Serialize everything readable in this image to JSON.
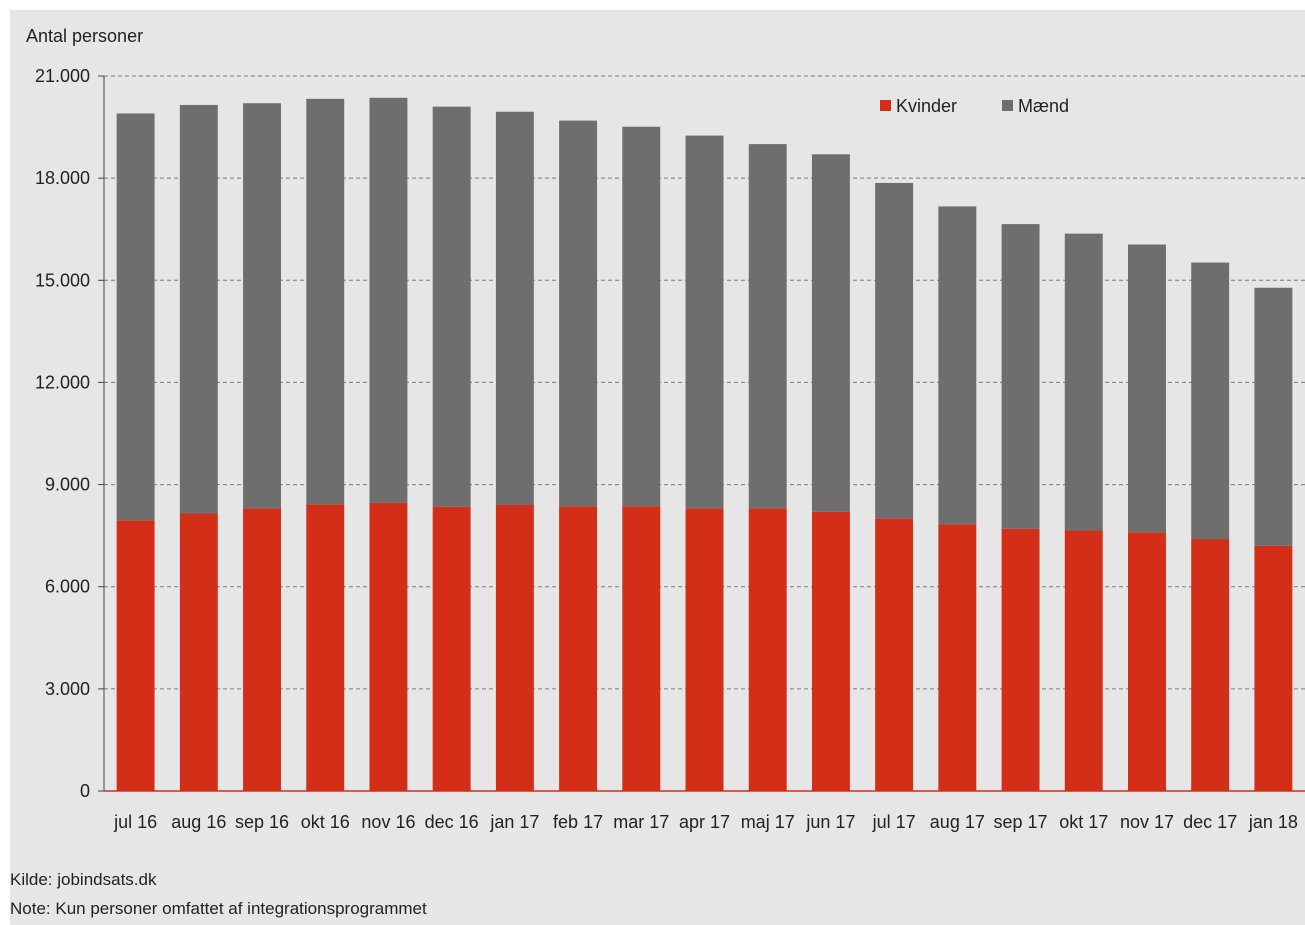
{
  "chart_data": {
    "type": "bar",
    "stacked": true,
    "ylabel": "Antal personer",
    "xlabel": "",
    "ylim": [
      0,
      21000
    ],
    "yticks": [
      0,
      3000,
      6000,
      9000,
      12000,
      15000,
      18000,
      21000
    ],
    "ytick_labels": [
      "0",
      "3.000",
      "6.000",
      "9.000",
      "12.000",
      "15.000",
      "18.000",
      "21.000"
    ],
    "grid": true,
    "legend_position": "top-right",
    "categories": [
      "jul 16",
      "aug 16",
      "sep 16",
      "okt 16",
      "nov 16",
      "dec 16",
      "jan 17",
      "feb 17",
      "mar 17",
      "apr 17",
      "maj 17",
      "jun 17",
      "jul 17",
      "aug 17",
      "sep 17",
      "okt 17",
      "nov 17",
      "dec 17",
      "jan 18"
    ],
    "series": [
      {
        "name": "Kvinder",
        "color": "#d22e18",
        "values": [
          7950,
          8150,
          8300,
          8420,
          8460,
          8350,
          8400,
          8360,
          8360,
          8300,
          8300,
          8200,
          8000,
          7830,
          7700,
          7650,
          7600,
          7400,
          7200
        ]
      },
      {
        "name": "Mænd",
        "color": "#6e6e6e",
        "values": [
          11950,
          12000,
          11900,
          11910,
          11900,
          11750,
          11550,
          11330,
          11150,
          10950,
          10700,
          10500,
          9860,
          9340,
          8950,
          8720,
          8450,
          8120,
          7580
        ]
      }
    ]
  },
  "footer": {
    "source": "Kilde: jobindsats.dk",
    "note": "Note: Kun personer omfattet af integrationsprogrammet"
  }
}
